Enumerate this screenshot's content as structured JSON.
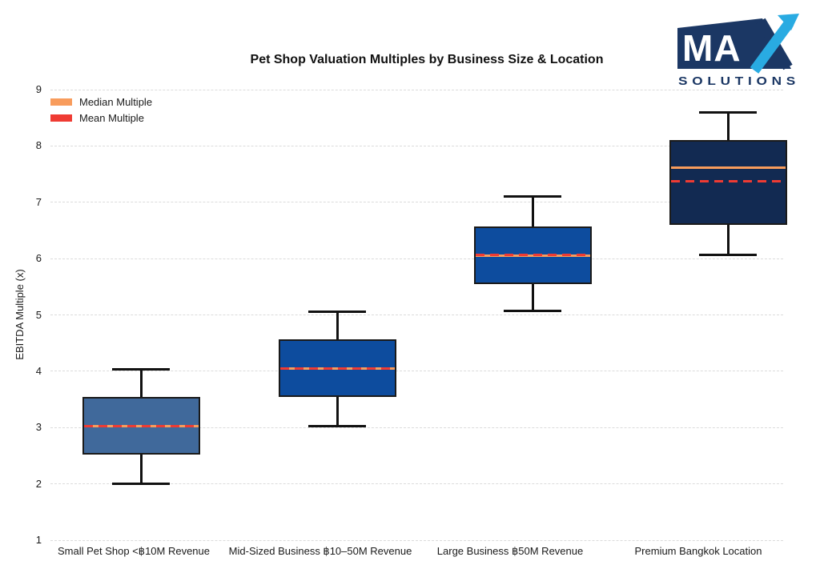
{
  "logo": {
    "ma": "MA",
    "brand": "MAX",
    "subtitle": "SOLUTIONS",
    "navy": "#1B3764",
    "light_blue": "#29ABE2"
  },
  "chart_data": {
    "type": "boxplot",
    "title": "Pet Shop Valuation Multiples by Business Size & Location",
    "xlabel": "",
    "ylabel": "EBITDA Multiple (x)",
    "ylim": [
      1,
      9
    ],
    "yticks": [
      1,
      2,
      3,
      4,
      5,
      6,
      7,
      8,
      9
    ],
    "grid": true,
    "legend_position": "upper left",
    "legend": [
      {
        "label": "Median Multiple",
        "color": "#F89C5C"
      },
      {
        "label": "Mean Multiple",
        "color": "#EF3B33"
      }
    ],
    "categories": [
      "Small Pet Shop <฿10M Revenue",
      "Mid-Sized Business ฿10–50M Revenue",
      "Large Business ฿50M Revenue",
      "Premium Bangkok Location"
    ],
    "series": [
      {
        "category": "Small Pet Shop <฿10M Revenue",
        "whisker_low": 2.0,
        "q1": 2.52,
        "median": 3.02,
        "mean": 3.02,
        "q3": 3.55,
        "whisker_high": 4.04,
        "box_color": "#40699B"
      },
      {
        "category": "Mid-Sized Business ฿10–50M Revenue",
        "whisker_low": 3.03,
        "q1": 3.55,
        "median": 4.05,
        "mean": 4.05,
        "q3": 4.56,
        "whisker_high": 5.06,
        "box_color": "#0D4C9E"
      },
      {
        "category": "Large Business ฿50M Revenue",
        "whisker_low": 5.07,
        "q1": 5.55,
        "median": 6.05,
        "mean": 6.06,
        "q3": 6.57,
        "whisker_high": 7.1,
        "box_color": "#0D4C9E"
      },
      {
        "category": "Premium Bangkok Location",
        "whisker_low": 6.07,
        "q1": 6.6,
        "median": 7.62,
        "mean": 7.38,
        "q3": 8.1,
        "whisker_high": 8.6,
        "box_color": "#122A52"
      }
    ],
    "style_colors": {
      "median_line": "#F89C5C",
      "mean_line": "#EF3B33",
      "whisker": "#111111",
      "box_border": "#1A1A1A",
      "gridline": "#DBDBDB"
    }
  }
}
